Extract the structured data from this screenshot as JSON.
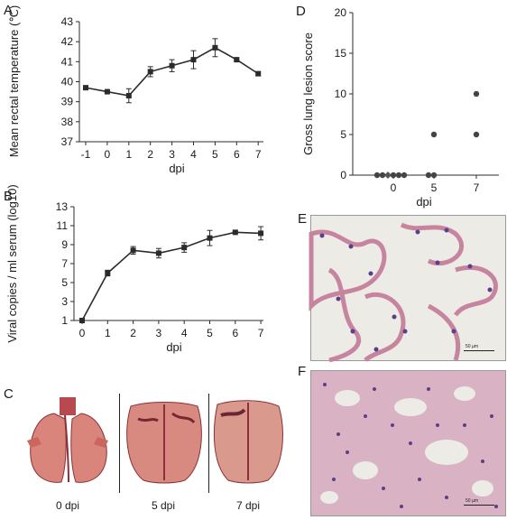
{
  "panels": {
    "a": "A",
    "b": "B",
    "c": "C",
    "d": "D",
    "e": "E",
    "f": "F"
  },
  "chart_data": [
    {
      "panel": "A",
      "type": "line",
      "xlabel": "dpi",
      "ylabel": "Mean rectal temperature (℃)",
      "categories": [
        "-1",
        "0",
        "1",
        "2",
        "3",
        "4",
        "5",
        "6",
        "7"
      ],
      "values": [
        39.7,
        39.5,
        39.3,
        40.5,
        40.8,
        41.1,
        41.7,
        41.1,
        40.4
      ],
      "errors": [
        0.05,
        0.05,
        0.35,
        0.25,
        0.3,
        0.45,
        0.45,
        0.05,
        0.1
      ],
      "ylim": [
        37,
        43
      ],
      "yticks": [
        "37",
        "38",
        "39",
        "40",
        "41",
        "42",
        "43"
      ],
      "grid": false
    },
    {
      "panel": "B",
      "type": "line",
      "xlabel": "dpi",
      "ylabel": "Viral copies / ml serum (log10)",
      "categories": [
        "0",
        "1",
        "2",
        "3",
        "4",
        "5",
        "6",
        "7"
      ],
      "values": [
        1.0,
        6.0,
        8.4,
        8.1,
        8.7,
        9.7,
        10.3,
        10.2
      ],
      "errors": [
        0.05,
        0.3,
        0.4,
        0.5,
        0.5,
        0.8,
        0.1,
        0.7
      ],
      "ylim": [
        1,
        13
      ],
      "yticks": [
        "1",
        "3",
        "5",
        "7",
        "9",
        "11",
        "13"
      ],
      "grid": false
    },
    {
      "panel": "D",
      "type": "scatter",
      "xlabel": "dpi",
      "ylabel": "Gross lung lesion score",
      "xticks": [
        "0",
        "5",
        "7"
      ],
      "points": [
        {
          "group": "0",
          "offset": -3,
          "y": 0,
          "shape": "circle"
        },
        {
          "group": "0",
          "offset": -2,
          "y": 0,
          "shape": "circle"
        },
        {
          "group": "0",
          "offset": -1,
          "y": 0,
          "shape": "diamond"
        },
        {
          "group": "0",
          "offset": 0,
          "y": 0,
          "shape": "circle"
        },
        {
          "group": "0",
          "offset": 1,
          "y": 0,
          "shape": "circle"
        },
        {
          "group": "0",
          "offset": 2,
          "y": 0,
          "shape": "circle"
        },
        {
          "group": "5",
          "offset": -1,
          "y": 0,
          "shape": "circle"
        },
        {
          "group": "5",
          "offset": 0,
          "y": 0,
          "shape": "circle"
        },
        {
          "group": "5",
          "offset": 0,
          "y": 5,
          "shape": "circle"
        },
        {
          "group": "7",
          "offset": 0,
          "y": 5,
          "shape": "circle"
        },
        {
          "group": "7",
          "offset": 0,
          "y": 10,
          "shape": "circle"
        }
      ],
      "ylim": [
        0,
        20
      ],
      "yticks": [
        "0",
        "5",
        "10",
        "15",
        "20"
      ],
      "grid": false
    }
  ],
  "photos": {
    "lungs": [
      {
        "label": "0 dpi"
      },
      {
        "label": "5 dpi"
      },
      {
        "label": "7 dpi"
      }
    ],
    "e_scale": "50 µm",
    "f_scale": "50 µm"
  },
  "colors": {
    "line": "#2b2b2b",
    "lung_pink": "#d9857c",
    "lung_dark": "#8c2f36",
    "histo_bg": "#ecebe6",
    "histo_pink": "#c7849f",
    "histo_nuclei": "#5b3f8a"
  }
}
